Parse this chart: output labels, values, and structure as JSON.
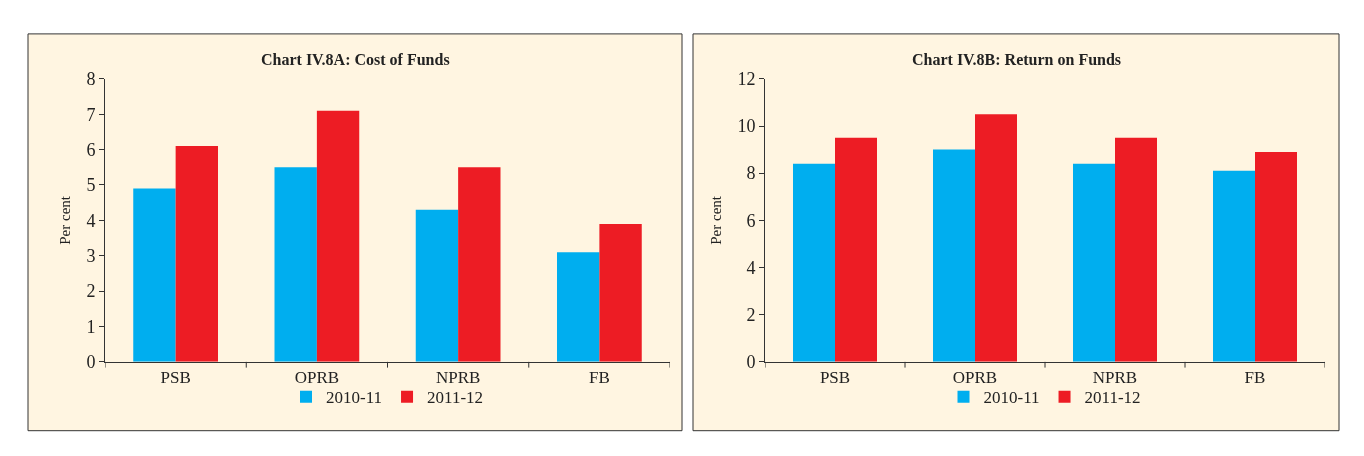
{
  "chart_data": [
    {
      "type": "bar",
      "title": "Chart IV.8A: Cost of Funds",
      "ylabel": "Per cent",
      "categories": [
        "PSB",
        "OPRB",
        "NPRB",
        "FB"
      ],
      "series": [
        {
          "name": "2010-11",
          "color": "#00aeef",
          "values": [
            4.9,
            5.5,
            4.3,
            3.1
          ]
        },
        {
          "name": "2011-12",
          "color": "#ed1c24",
          "values": [
            6.1,
            7.1,
            5.5,
            3.9
          ]
        }
      ],
      "ylim": [
        0,
        8
      ],
      "yticks": [
        0,
        1,
        2,
        3,
        4,
        5,
        6,
        7,
        8
      ],
      "grid": false,
      "legend": "bottom"
    },
    {
      "type": "bar",
      "title": "Chart IV.8B: Return on Funds",
      "ylabel": "Per cent",
      "categories": [
        "PSB",
        "OPRB",
        "NPRB",
        "FB"
      ],
      "series": [
        {
          "name": "2010-11",
          "color": "#00aeef",
          "values": [
            8.4,
            9.0,
            8.4,
            8.1
          ]
        },
        {
          "name": "2011-12",
          "color": "#ed1c24",
          "values": [
            9.5,
            10.5,
            9.5,
            8.9
          ]
        }
      ],
      "ylim": [
        0,
        12
      ],
      "yticks": [
        0,
        2,
        4,
        6,
        8,
        10,
        12
      ],
      "grid": false,
      "legend": "bottom"
    }
  ]
}
